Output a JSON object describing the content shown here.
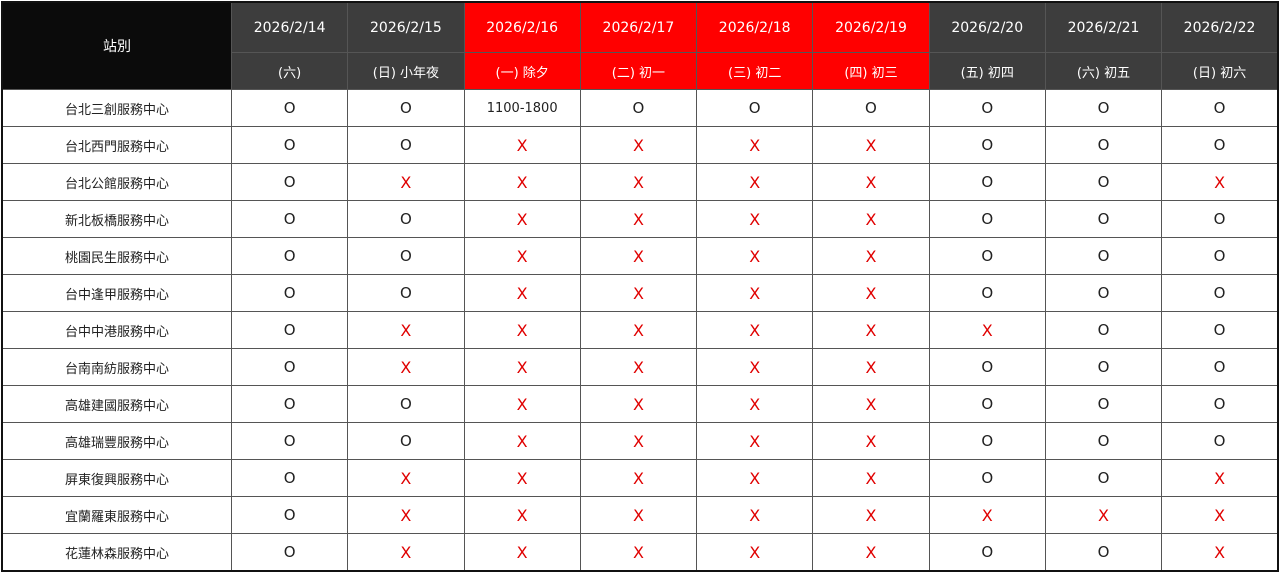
{
  "colors": {
    "header_dark": "#3d3d3d",
    "header_red": "#ff0000",
    "station_header": "#0b0b0b",
    "closed_mark": "#e00000"
  },
  "station_header": "站別",
  "columns": [
    {
      "date": "2026/2/14",
      "label": "(六)",
      "holiday": false
    },
    {
      "date": "2026/2/15",
      "label": "(日) 小年夜",
      "holiday": false
    },
    {
      "date": "2026/2/16",
      "label": "(一) 除夕",
      "holiday": true
    },
    {
      "date": "2026/2/17",
      "label": "(二) 初一",
      "holiday": true
    },
    {
      "date": "2026/2/18",
      "label": "(三) 初二",
      "holiday": true
    },
    {
      "date": "2026/2/19",
      "label": "(四) 初三",
      "holiday": true
    },
    {
      "date": "2026/2/20",
      "label": "(五) 初四",
      "holiday": false
    },
    {
      "date": "2026/2/21",
      "label": "(六) 初五",
      "holiday": false
    },
    {
      "date": "2026/2/22",
      "label": "(日) 初六",
      "holiday": false
    }
  ],
  "rows": [
    {
      "station": "台北三創服務中心",
      "cells": [
        "O",
        "O",
        "1100-1800",
        "O",
        "O",
        "O",
        "O",
        "O",
        "O"
      ]
    },
    {
      "station": "台北西門服務中心",
      "cells": [
        "O",
        "O",
        "X",
        "X",
        "X",
        "X",
        "O",
        "O",
        "O"
      ]
    },
    {
      "station": "台北公館服務中心",
      "cells": [
        "O",
        "X",
        "X",
        "X",
        "X",
        "X",
        "O",
        "O",
        "X"
      ]
    },
    {
      "station": "新北板橋服務中心",
      "cells": [
        "O",
        "O",
        "X",
        "X",
        "X",
        "X",
        "O",
        "O",
        "O"
      ]
    },
    {
      "station": "桃園民生服務中心",
      "cells": [
        "O",
        "O",
        "X",
        "X",
        "X",
        "X",
        "O",
        "O",
        "O"
      ]
    },
    {
      "station": "台中逢甲服務中心",
      "cells": [
        "O",
        "O",
        "X",
        "X",
        "X",
        "X",
        "O",
        "O",
        "O"
      ]
    },
    {
      "station": "台中中港服務中心",
      "cells": [
        "O",
        "X",
        "X",
        "X",
        "X",
        "X",
        "X",
        "O",
        "O"
      ]
    },
    {
      "station": "台南南紡服務中心",
      "cells": [
        "O",
        "X",
        "X",
        "X",
        "X",
        "X",
        "O",
        "O",
        "O"
      ]
    },
    {
      "station": "高雄建國服務中心",
      "cells": [
        "O",
        "O",
        "X",
        "X",
        "X",
        "X",
        "O",
        "O",
        "O"
      ]
    },
    {
      "station": "高雄瑞豐服務中心",
      "cells": [
        "O",
        "O",
        "X",
        "X",
        "X",
        "X",
        "O",
        "O",
        "O"
      ]
    },
    {
      "station": "屏東復興服務中心",
      "cells": [
        "O",
        "X",
        "X",
        "X",
        "X",
        "X",
        "O",
        "O",
        "X"
      ]
    },
    {
      "station": "宜蘭羅東服務中心",
      "cells": [
        "O",
        "X",
        "X",
        "X",
        "X",
        "X",
        "X",
        "X",
        "X"
      ]
    },
    {
      "station": "花蓮林森服務中心",
      "cells": [
        "O",
        "X",
        "X",
        "X",
        "X",
        "X",
        "O",
        "O",
        "X"
      ]
    }
  ]
}
